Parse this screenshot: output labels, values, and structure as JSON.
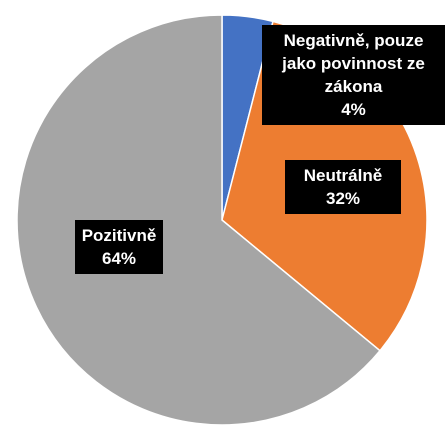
{
  "chart_data": {
    "type": "pie",
    "categories": [
      "Negativně, pouze jako povinnost ze zákona",
      "Neutrálně",
      "Pozitivně"
    ],
    "values": [
      4,
      32,
      64
    ],
    "value_labels": [
      "4%",
      "32%",
      "64%"
    ],
    "colors": [
      "#4472c4",
      "#ed7d31",
      "#a5a5a5"
    ]
  }
}
